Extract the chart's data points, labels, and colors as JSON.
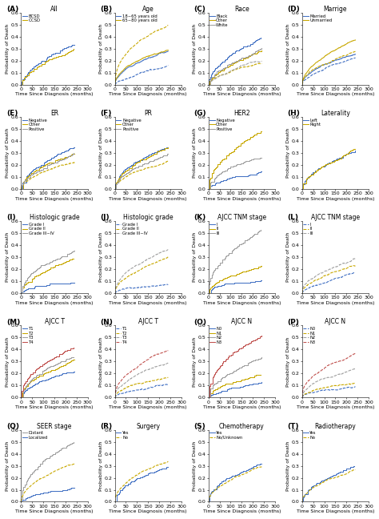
{
  "subplots": [
    {
      "label": "A",
      "title": "All",
      "curves": [
        {
          "name": "BCSD",
          "color": "#4472C4",
          "style": "solid",
          "final": 0.32,
          "shape": 0.55
        },
        {
          "name": "OCSD",
          "color": "#C8A800",
          "style": "solid",
          "final": 0.3,
          "shape": 0.55
        }
      ]
    },
    {
      "label": "B",
      "title": "Age",
      "curves": [
        {
          "name": "18~65 years old",
          "color": "#4472C4",
          "style": "solid",
          "final": 0.28,
          "shape": 0.52
        },
        {
          "name": "18~65 years old",
          "color": "#4472C4",
          "style": "dashed",
          "final": 0.13,
          "shape": 0.6
        },
        {
          "name": "65~80 years old",
          "color": "#C8A800",
          "style": "solid",
          "final": 0.3,
          "shape": 0.5
        },
        {
          "name": "65~80 years old",
          "color": "#C8A800",
          "style": "dashed",
          "final": 0.5,
          "shape": 0.45
        }
      ]
    },
    {
      "label": "C",
      "title": "Race",
      "curves": [
        {
          "name": "Black",
          "color": "#4472C4",
          "style": "solid",
          "final": 0.4,
          "shape": 0.5
        },
        {
          "name": "Other",
          "color": "#C8A800",
          "style": "solid",
          "final": 0.28,
          "shape": 0.55
        },
        {
          "name": "Other",
          "color": "#C8A800",
          "style": "dashed",
          "final": 0.18,
          "shape": 0.6
        },
        {
          "name": "White",
          "color": "#A0A0A0",
          "style": "solid",
          "final": 0.3,
          "shape": 0.55
        },
        {
          "name": "White",
          "color": "#A0A0A0",
          "style": "dashed",
          "final": 0.2,
          "shape": 0.58
        }
      ]
    },
    {
      "label": "D",
      "title": "Marrige",
      "curves": [
        {
          "name": "Married",
          "color": "#4472C4",
          "style": "solid",
          "final": 0.28,
          "shape": 0.52
        },
        {
          "name": "Married",
          "color": "#4472C4",
          "style": "dashed",
          "final": 0.22,
          "shape": 0.55
        },
        {
          "name": "Unmarried",
          "color": "#C8A800",
          "style": "solid",
          "final": 0.35,
          "shape": 0.5
        },
        {
          "name": "Unmarried",
          "color": "#C8A800",
          "style": "dashed",
          "final": 0.3,
          "shape": 0.5
        }
      ]
    },
    {
      "label": "E",
      "title": "ER",
      "curves": [
        {
          "name": "Negative",
          "color": "#4472C4",
          "style": "solid",
          "final": 0.36,
          "shape": 0.5
        },
        {
          "name": "Other",
          "color": "#C8A800",
          "style": "solid",
          "final": 0.3,
          "shape": 0.52
        },
        {
          "name": "Other",
          "color": "#C8A800",
          "style": "dashed",
          "final": 0.22,
          "shape": 0.55
        },
        {
          "name": "Positive",
          "color": "#A0A0A0",
          "style": "solid",
          "final": 0.32,
          "shape": 0.52
        }
      ]
    },
    {
      "label": "F",
      "title": "PR",
      "curves": [
        {
          "name": "Negative",
          "color": "#4472C4",
          "style": "solid",
          "final": 0.34,
          "shape": 0.5
        },
        {
          "name": "Other",
          "color": "#C8A800",
          "style": "solid",
          "final": 0.34,
          "shape": 0.5
        },
        {
          "name": "Other",
          "color": "#C8A800",
          "style": "dashed",
          "final": 0.24,
          "shape": 0.55
        },
        {
          "name": "Positive",
          "color": "#A0A0A0",
          "style": "solid",
          "final": 0.3,
          "shape": 0.52
        }
      ]
    },
    {
      "label": "G",
      "title": "HER2",
      "curves": [
        {
          "name": "Negative",
          "color": "#4472C4",
          "style": "solid",
          "final": 0.14,
          "shape": 0.52
        },
        {
          "name": "Other",
          "color": "#C8A800",
          "style": "solid",
          "final": 0.5,
          "shape": 0.48
        },
        {
          "name": "Positive",
          "color": "#A0A0A0",
          "style": "solid",
          "final": 0.28,
          "shape": 0.52
        }
      ]
    },
    {
      "label": "H",
      "title": "Laterality",
      "curves": [
        {
          "name": "Left",
          "color": "#4472C4",
          "style": "solid",
          "final": 0.32,
          "shape": 0.52
        },
        {
          "name": "Right",
          "color": "#C8A800",
          "style": "solid",
          "final": 0.3,
          "shape": 0.52
        }
      ]
    },
    {
      "label": "I",
      "title": "Histologic grade",
      "curves": [
        {
          "name": "Grade I",
          "color": "#4472C4",
          "style": "solid",
          "final": 0.1,
          "shape": 0.55
        },
        {
          "name": "Grade II",
          "color": "#C8A800",
          "style": "solid",
          "final": 0.28,
          "shape": 0.52
        },
        {
          "name": "Grade III~IV",
          "color": "#A0A0A0",
          "style": "solid",
          "final": 0.36,
          "shape": 0.5
        }
      ]
    },
    {
      "label": "J",
      "title": "Histologic grade",
      "curves": [
        {
          "name": "Grade I",
          "color": "#4472C4",
          "style": "dashed",
          "final": 0.1,
          "shape": 0.55
        },
        {
          "name": "Grade II",
          "color": "#C8A800",
          "style": "dashed",
          "final": 0.28,
          "shape": 0.52
        },
        {
          "name": "Grade III~IV",
          "color": "#A0A0A0",
          "style": "dashed",
          "final": 0.36,
          "shape": 0.5
        }
      ]
    },
    {
      "label": "K",
      "title": "AJCC TNM stage",
      "curves": [
        {
          "name": "I",
          "color": "#4472C4",
          "style": "solid",
          "final": 0.14,
          "shape": 0.55
        },
        {
          "name": "II",
          "color": "#C8A800",
          "style": "solid",
          "final": 0.25,
          "shape": 0.52
        },
        {
          "name": "III",
          "color": "#A0A0A0",
          "style": "solid",
          "final": 0.5,
          "shape": 0.45
        }
      ]
    },
    {
      "label": "L",
      "title": "AJCC TNM stage",
      "curves": [
        {
          "name": "I",
          "color": "#4472C4",
          "style": "dashed",
          "final": 0.14,
          "shape": 0.55
        },
        {
          "name": "II",
          "color": "#C8A800",
          "style": "dashed",
          "final": 0.22,
          "shape": 0.52
        },
        {
          "name": "III",
          "color": "#A0A0A0",
          "style": "dashed",
          "final": 0.3,
          "shape": 0.48
        }
      ]
    },
    {
      "label": "M",
      "title": "AJCC T",
      "curves": [
        {
          "name": "T1",
          "color": "#4472C4",
          "style": "solid",
          "final": 0.22,
          "shape": 0.52
        },
        {
          "name": "T2",
          "color": "#C8A800",
          "style": "solid",
          "final": 0.3,
          "shape": 0.5
        },
        {
          "name": "T3",
          "color": "#A0A0A0",
          "style": "solid",
          "final": 0.35,
          "shape": 0.5
        },
        {
          "name": "T4",
          "color": "#C0504D",
          "style": "solid",
          "final": 0.45,
          "shape": 0.48
        }
      ]
    },
    {
      "label": "N",
      "title": "AJCC T",
      "curves": [
        {
          "name": "T1",
          "color": "#4472C4",
          "style": "dashed",
          "final": 0.1,
          "shape": 0.55
        },
        {
          "name": "T2",
          "color": "#C8A800",
          "style": "dashed",
          "final": 0.18,
          "shape": 0.52
        },
        {
          "name": "T3",
          "color": "#A0A0A0",
          "style": "dashed",
          "final": 0.28,
          "shape": 0.5
        },
        {
          "name": "T4",
          "color": "#C0504D",
          "style": "dashed",
          "final": 0.38,
          "shape": 0.48
        }
      ]
    },
    {
      "label": "O",
      "title": "AJCC N",
      "curves": [
        {
          "name": "N0",
          "color": "#4472C4",
          "style": "solid",
          "final": 0.14,
          "shape": 0.55
        },
        {
          "name": "N1",
          "color": "#C8A800",
          "style": "solid",
          "final": 0.2,
          "shape": 0.52
        },
        {
          "name": "N2",
          "color": "#A0A0A0",
          "style": "solid",
          "final": 0.35,
          "shape": 0.5
        },
        {
          "name": "N3",
          "color": "#C0504D",
          "style": "solid",
          "final": 0.52,
          "shape": 0.45
        }
      ]
    },
    {
      "label": "P",
      "title": "AJCC N",
      "curves": [
        {
          "name": "N0",
          "color": "#4472C4",
          "style": "dashed",
          "final": 0.1,
          "shape": 0.55
        },
        {
          "name": "N1",
          "color": "#C8A800",
          "style": "dashed",
          "final": 0.15,
          "shape": 0.52
        },
        {
          "name": "N2",
          "color": "#A0A0A0",
          "style": "dashed",
          "final": 0.25,
          "shape": 0.5
        },
        {
          "name": "N3",
          "color": "#C0504D",
          "style": "dashed",
          "final": 0.38,
          "shape": 0.45
        }
      ]
    },
    {
      "label": "Q",
      "title": "SEER stage",
      "curves": [
        {
          "name": "Distant",
          "color": "#A0A0A0",
          "style": "solid",
          "final": 0.5,
          "shape": 0.45
        },
        {
          "name": "Localized",
          "color": "#4472C4",
          "style": "solid",
          "final": 0.12,
          "shape": 0.55
        },
        {
          "name": "Distant",
          "color": "#C8A800",
          "style": "dashed",
          "final": 0.3,
          "shape": 0.5
        }
      ]
    },
    {
      "label": "R",
      "title": "Surgery",
      "curves": [
        {
          "name": "Yes",
          "color": "#4472C4",
          "style": "solid",
          "final": 0.3,
          "shape": 0.52
        },
        {
          "name": "No",
          "color": "#C8A800",
          "style": "dashed",
          "final": 0.35,
          "shape": 0.5
        }
      ]
    },
    {
      "label": "S",
      "title": "Chemotherapy",
      "curves": [
        {
          "name": "Yes",
          "color": "#4472C4",
          "style": "solid",
          "final": 0.34,
          "shape": 0.5
        },
        {
          "name": "No/Unknown",
          "color": "#C8A800",
          "style": "dashed",
          "final": 0.28,
          "shape": 0.52
        }
      ]
    },
    {
      "label": "T",
      "title": "Radiotherapy",
      "curves": [
        {
          "name": "Yes",
          "color": "#4472C4",
          "style": "solid",
          "final": 0.3,
          "shape": 0.52
        },
        {
          "name": "No",
          "color": "#C8A800",
          "style": "dashed",
          "final": 0.26,
          "shape": 0.52
        }
      ]
    }
  ],
  "xlim": [
    0,
    300
  ],
  "xticks": [
    0,
    50,
    100,
    150,
    200,
    250,
    300
  ],
  "ylim": [
    0.0,
    0.6
  ],
  "yticks": [
    0.0,
    0.1,
    0.2,
    0.3,
    0.4,
    0.5,
    0.6
  ],
  "xlabel": "Time Since Diagnosis (months)",
  "ylabel": "Probability of Death",
  "legend_fontsize": 3.8,
  "axis_fontsize": 4.5,
  "title_fontsize": 5.5,
  "label_fontsize": 6.5
}
